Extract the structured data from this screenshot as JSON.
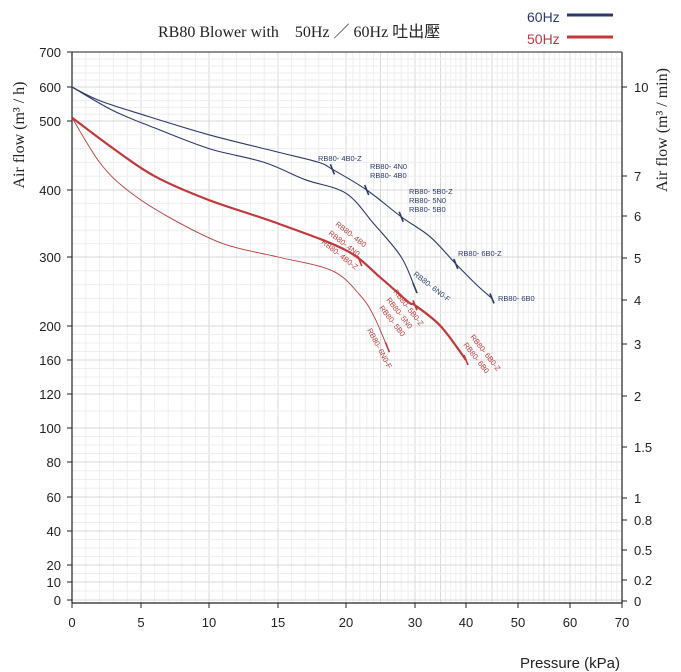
{
  "chart_data": {
    "type": "line",
    "title": "RB80 Blower with　50Hz ／ 60Hz 吐出壓",
    "xlabel": "Pressure (kPa)",
    "ylabel": "Air flow (m³ / h)",
    "y2label": "Air flow (m³ / min)",
    "xlim": [
      0,
      70
    ],
    "x_ticks": [
      "0",
      "5",
      "10",
      "15",
      "20",
      "30",
      "40",
      "50",
      "60",
      "70"
    ],
    "y_ticks": [
      "0",
      "10",
      "20",
      "40",
      "60",
      "80",
      "100",
      "120",
      "160",
      "200",
      "300",
      "400",
      "500",
      "600",
      "700"
    ],
    "y2_ticks": [
      "0",
      "0.2",
      "0.5",
      "0.8",
      "1",
      "1.5",
      "2",
      "3",
      "4",
      "5",
      "6",
      "7",
      "10"
    ],
    "grid": true,
    "legend_position": "top-right",
    "legend": [
      {
        "label": "60Hz",
        "color": "#2b3a6e"
      },
      {
        "label": "50Hz",
        "color": "#c0393b"
      }
    ],
    "series": [
      {
        "hz": "60Hz",
        "color": "#2b3a6e",
        "points": [
          [
            0,
            600
          ],
          [
            2,
            560
          ],
          [
            5,
            520
          ],
          [
            10,
            480
          ],
          [
            15,
            455
          ],
          [
            18,
            440
          ],
          [
            19,
            430
          ],
          [
            23,
            400
          ],
          [
            28,
            360
          ],
          [
            33,
            330
          ],
          [
            38,
            290
          ],
          [
            42,
            260
          ],
          [
            45,
            240
          ]
        ],
        "end_x": 45,
        "markers": [
          {
            "x": 19,
            "label": "RB80- 4B0-Z"
          },
          {
            "x": 23,
            "label": "RB80- 4N0"
          },
          {
            "x": 28,
            "label": "RB80- 5B0-Z"
          },
          {
            "x": 38,
            "label": "RB80- 6B0-Z"
          },
          {
            "x": 45,
            "label": "RB80- 6B0"
          }
        ],
        "extra_labels": [
          "RB80- 4B0",
          "RB80- 5N0",
          "RB80- 5B0"
        ]
      },
      {
        "hz": "60Hz",
        "color": "#2b3a6e",
        "points": [
          [
            0,
            600
          ],
          [
            3,
            530
          ],
          [
            6,
            490
          ],
          [
            10,
            460
          ],
          [
            14,
            440
          ],
          [
            17,
            415
          ],
          [
            20,
            395
          ],
          [
            24,
            350
          ],
          [
            28,
            300
          ],
          [
            30,
            255
          ]
        ],
        "end_x": 30,
        "markers": [
          {
            "x": 30,
            "label": "RB80- 6N0-F"
          }
        ]
      },
      {
        "hz": "50Hz",
        "color": "#c0393b",
        "points": [
          [
            0,
            510
          ],
          [
            3,
            460
          ],
          [
            6,
            420
          ],
          [
            10,
            385
          ],
          [
            15,
            350
          ],
          [
            20,
            310
          ],
          [
            25,
            270
          ],
          [
            29,
            235
          ],
          [
            30,
            230
          ],
          [
            35,
            200
          ],
          [
            40,
            160
          ]
        ],
        "end_x": 40,
        "markers": [
          {
            "x": 22,
            "label": "RB80- 4B0-Z"
          },
          {
            "x": 30,
            "label": "RB80- 5B0-Z"
          },
          {
            "x": 40,
            "label": "RB80- 6B0-Z"
          }
        ],
        "extra_labels": [
          "RB80- 4B0",
          "RB80- 4N0",
          "RB80- 5N0",
          "RB80- 5B0",
          "RB80- 6B0"
        ]
      },
      {
        "hz": "50Hz",
        "color": "#c0393b",
        "points": [
          [
            0,
            510
          ],
          [
            2,
            440
          ],
          [
            4,
            400
          ],
          [
            7,
            360
          ],
          [
            11,
            320
          ],
          [
            15,
            300
          ],
          [
            19,
            280
          ],
          [
            22,
            245
          ],
          [
            24,
            215
          ],
          [
            26,
            175
          ]
        ],
        "end_x": 26,
        "markers": [
          {
            "x": 26,
            "label": "RB80- 6N0-F"
          }
        ]
      }
    ]
  }
}
